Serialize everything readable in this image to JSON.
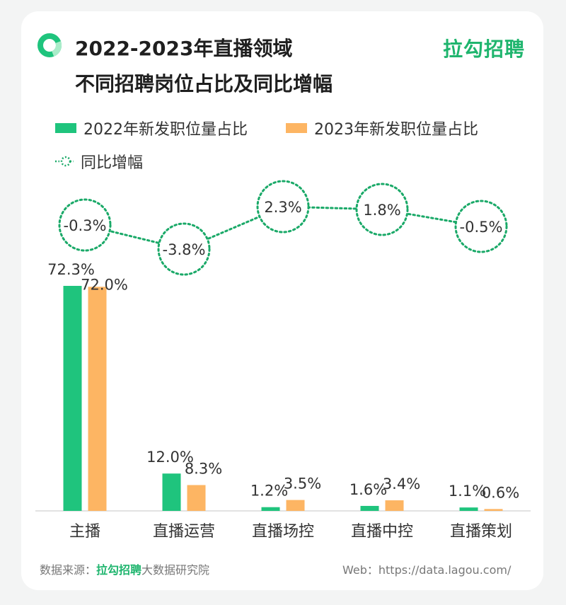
{
  "header": {
    "title_line1": "2022-2023年直播领域",
    "title_line2": "不同招聘岗位占比及同比增幅",
    "brand": "拉勾招聘"
  },
  "legend": {
    "series_2022": "2022年新发职位量占比",
    "series_2023": "2023年新发职位量占比",
    "yoy": "同比增幅"
  },
  "colors": {
    "green": "#1fc47d",
    "orange": "#fdb563",
    "dotted": "#1aa968"
  },
  "chart_data": {
    "type": "bar",
    "categories": [
      "主播",
      "直播运营",
      "直播场控",
      "直播中控",
      "直播策划"
    ],
    "series": [
      {
        "name": "2022年新发职位量占比",
        "values": [
          72.3,
          12.0,
          1.2,
          1.6,
          1.1
        ],
        "labels": [
          "72.3%",
          "12.0%",
          "1.2%",
          "1.6%",
          "1.1%"
        ]
      },
      {
        "name": "2023年新发职位量占比",
        "values": [
          72.0,
          8.3,
          3.5,
          3.4,
          0.6
        ],
        "labels": [
          "72.0%",
          "8.3%",
          "3.5%",
          "3.4%",
          "0.6%"
        ]
      }
    ],
    "yoy_change": {
      "name": "同比增幅",
      "values": [
        -0.3,
        -3.8,
        2.3,
        1.8,
        -0.5
      ],
      "labels": [
        "-0.3%",
        "-3.8%",
        "2.3%",
        "1.8%",
        "-0.5%"
      ]
    },
    "ylim": [
      0,
      80
    ]
  },
  "footer": {
    "source_prefix": "数据来源：",
    "source_brand": "拉勾招聘",
    "source_suffix": "大数据研究院",
    "web": "Web：https://data.lagou.com/"
  }
}
